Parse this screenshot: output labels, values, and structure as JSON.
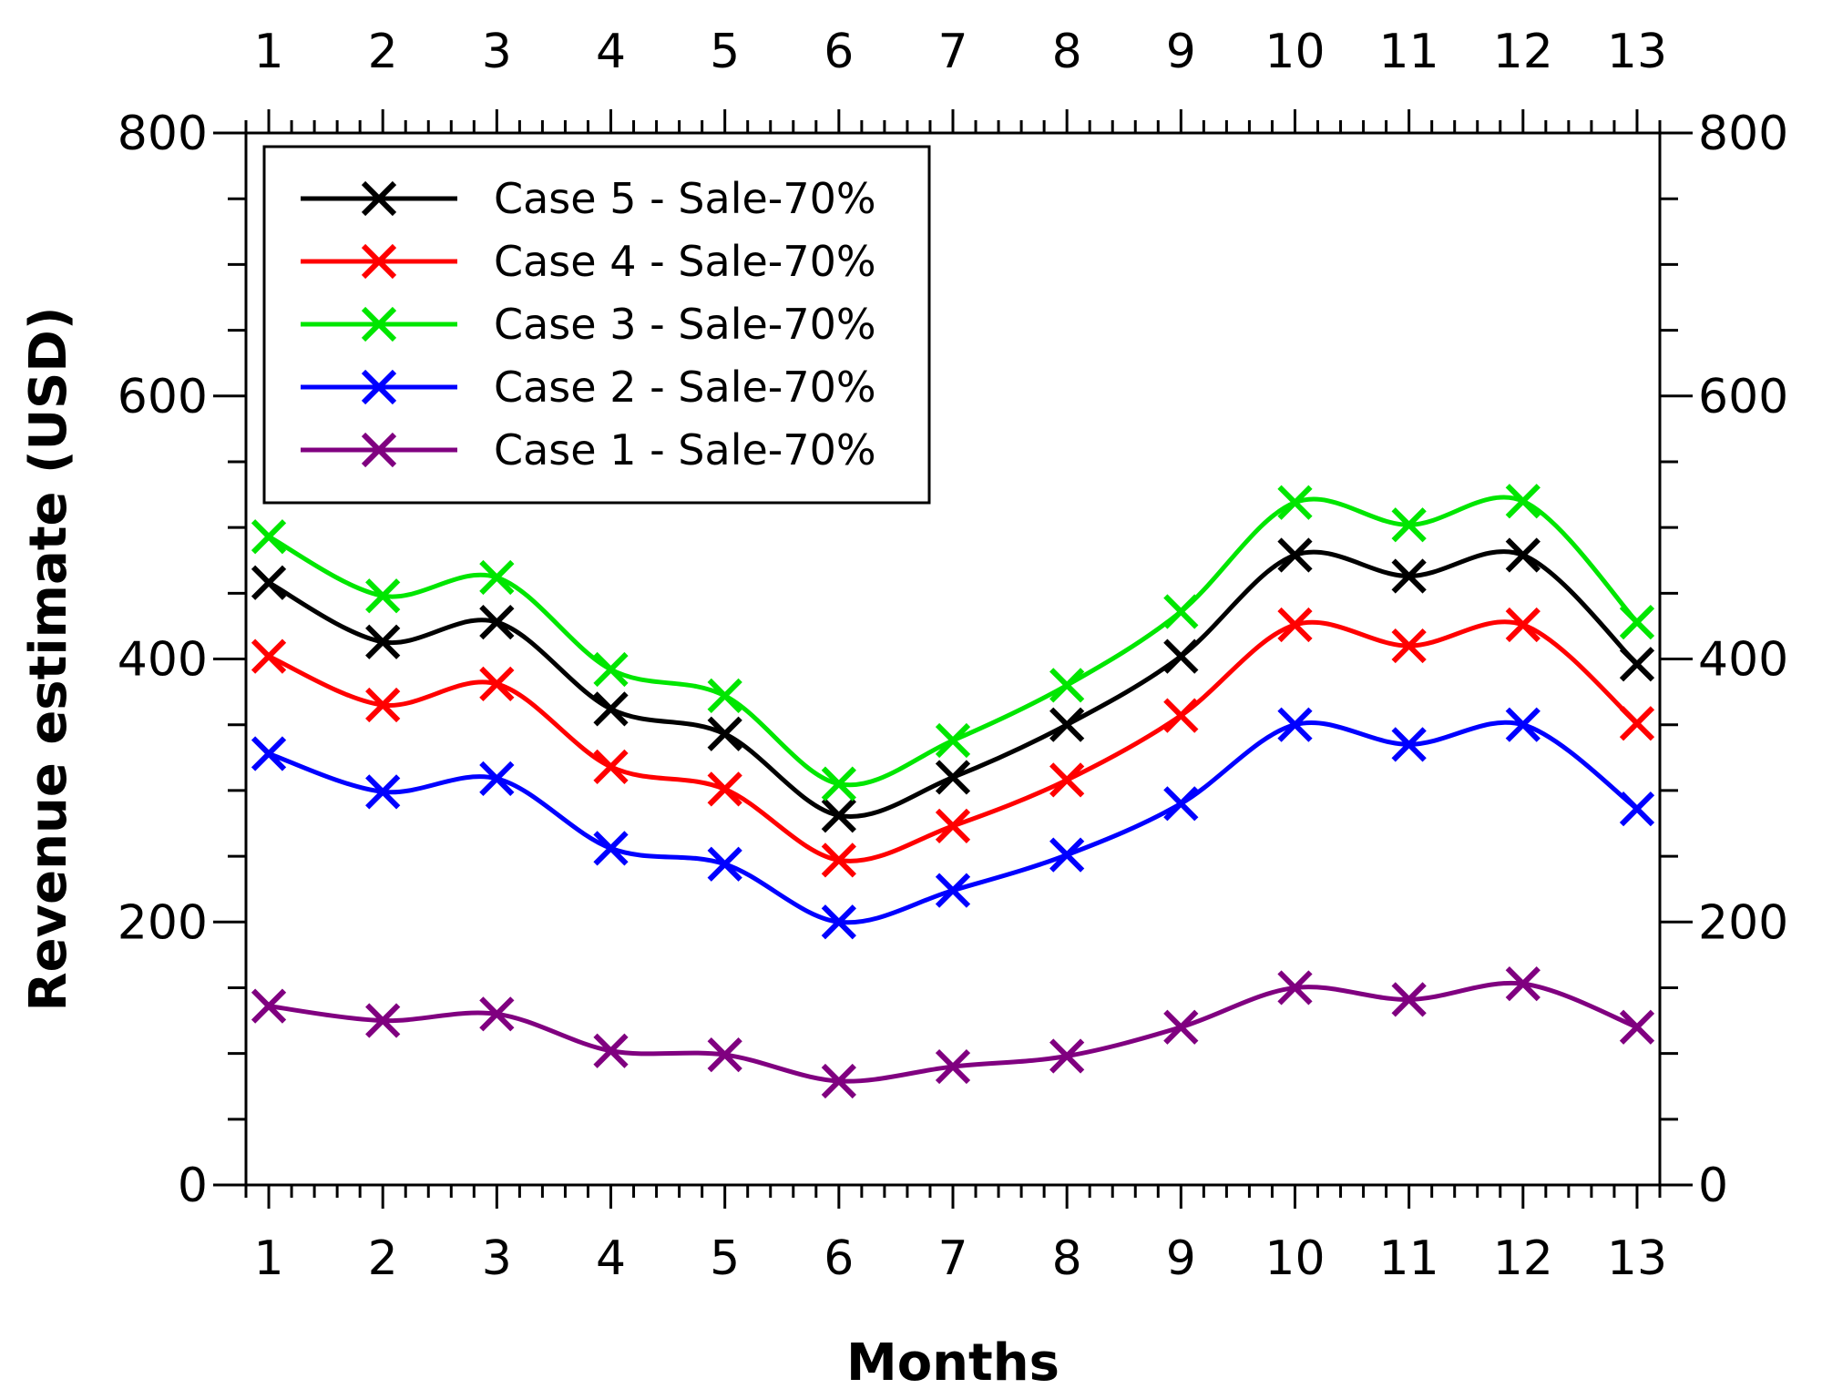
{
  "chart_data": {
    "type": "line",
    "title": "",
    "xlabel": "Months",
    "ylabel": "Revenue estimate (USD)",
    "xlim": [
      0.8,
      13.2
    ],
    "ylim": [
      0,
      800
    ],
    "x": [
      1,
      2,
      3,
      4,
      5,
      6,
      7,
      8,
      9,
      10,
      11,
      12,
      13
    ],
    "x_ticks": [
      "1",
      "2",
      "3",
      "4",
      "5",
      "6",
      "7",
      "8",
      "9",
      "10",
      "11",
      "12",
      "13"
    ],
    "y_ticks": [
      "0",
      "200",
      "400",
      "600",
      "800"
    ],
    "y_tick_values": [
      0,
      200,
      400,
      600,
      800
    ],
    "grid": false,
    "legend_position": "top-left",
    "series": [
      {
        "name": "Case 5 - Sale-70%",
        "color": "#000000",
        "marker": "x",
        "values": [
          458,
          413,
          428,
          362,
          343,
          281,
          310,
          350,
          402,
          479,
          463,
          479,
          396
        ]
      },
      {
        "name": "Case 4 - Sale-70%",
        "color": "#ff0000",
        "marker": "x",
        "values": [
          402,
          365,
          381,
          318,
          301,
          247,
          273,
          308,
          357,
          426,
          410,
          426,
          351
        ]
      },
      {
        "name": "Case 3 - Sale-70%",
        "color": "#00e600",
        "marker": "x",
        "values": [
          493,
          448,
          462,
          392,
          372,
          305,
          338,
          380,
          436,
          519,
          502,
          520,
          428
        ]
      },
      {
        "name": "Case 2 - Sale-70%",
        "color": "#0000ff",
        "marker": "x",
        "values": [
          328,
          299,
          309,
          256,
          244,
          200,
          224,
          251,
          290,
          350,
          335,
          350,
          286
        ]
      },
      {
        "name": "Case 1 - Sale-70%",
        "color": "#800080",
        "marker": "x",
        "values": [
          136,
          125,
          130,
          102,
          99,
          79,
          90,
          98,
          120,
          150,
          141,
          153,
          120
        ]
      }
    ]
  }
}
